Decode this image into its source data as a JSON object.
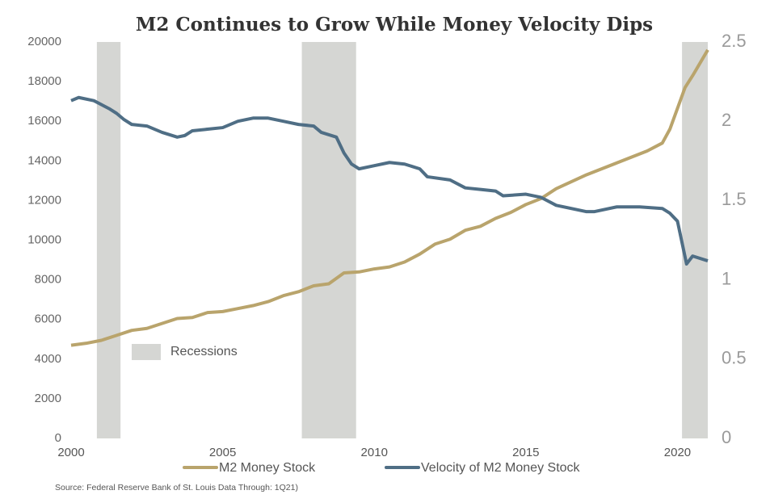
{
  "chart_data": {
    "type": "line",
    "title": "M2 Continues to Grow While Money Velocity Dips",
    "source": "Source: Federal Reserve Bank of St. Louis Data Through: 1Q21)",
    "xlim": [
      2000,
      2021
    ],
    "xticks": [
      2000,
      2005,
      2010,
      2015,
      2020
    ],
    "ylim": [
      0,
      20000
    ],
    "yticks": [
      0,
      2000,
      4000,
      6000,
      8000,
      10000,
      12000,
      14000,
      16000,
      18000,
      20000
    ],
    "y2lim": [
      0,
      2.5
    ],
    "y2ticks": [
      0,
      0.5,
      1,
      1.5,
      2,
      2.5
    ],
    "recessions": {
      "name": "Recessions",
      "color": "#d5d6d3",
      "ranges": [
        [
          2000.85,
          2001.63
        ],
        [
          2007.61,
          2009.4
        ],
        [
          2020.15,
          2021
        ]
      ]
    },
    "series": [
      {
        "name": "M2 Money Stock",
        "color": "#b9a46c",
        "x": [
          2000,
          2000.5,
          2001,
          2001.5,
          2002,
          2002.5,
          2003,
          2003.5,
          2004,
          2004.5,
          2005,
          2005.5,
          2006,
          2006.5,
          2007,
          2007.5,
          2008,
          2008.5,
          2009,
          2009.5,
          2010,
          2010.5,
          2011,
          2011.5,
          2012,
          2012.5,
          2013,
          2013.5,
          2014,
          2014.5,
          2015,
          2015.5,
          2016,
          2016.5,
          2017,
          2017.5,
          2018,
          2018.5,
          2019,
          2019.5,
          2019.75,
          2020.25,
          2020.5,
          2021
        ],
        "values": [
          4700,
          4800,
          4950,
          5200,
          5450,
          5550,
          5800,
          6050,
          6100,
          6350,
          6400,
          6550,
          6700,
          6900,
          7200,
          7400,
          7700,
          7800,
          8350,
          8400,
          8550,
          8650,
          8900,
          9300,
          9800,
          10050,
          10500,
          10700,
          11100,
          11400,
          11800,
          12100,
          12600,
          12950,
          13300,
          13600,
          13900,
          14200,
          14500,
          14900,
          15600,
          17700,
          18300,
          19600
        ]
      },
      {
        "name": "Velocity of M2 Money Stock",
        "color": "#4f6e85",
        "axis": "y2",
        "x": [
          2000,
          2000.25,
          2000.75,
          2001.25,
          2001.5,
          2001.75,
          2002,
          2002.5,
          2003,
          2003.5,
          2003.75,
          2004,
          2004.5,
          2005,
          2005.5,
          2006,
          2006.5,
          2007,
          2007.5,
          2008,
          2008.25,
          2008.75,
          2009,
          2009.25,
          2009.5,
          2010,
          2010.5,
          2011,
          2011.5,
          2011.75,
          2012.5,
          2013,
          2013.5,
          2014,
          2014.25,
          2015,
          2015.5,
          2016,
          2017,
          2017.25,
          2018,
          2018.75,
          2019.5,
          2019.75,
          2020,
          2020.3,
          2020.5,
          2021
        ],
        "values": [
          2.13,
          2.15,
          2.13,
          2.08,
          2.05,
          2.01,
          1.98,
          1.97,
          1.93,
          1.9,
          1.91,
          1.94,
          1.95,
          1.96,
          2.0,
          2.02,
          2.02,
          2.0,
          1.98,
          1.97,
          1.93,
          1.9,
          1.8,
          1.73,
          1.7,
          1.72,
          1.74,
          1.73,
          1.7,
          1.65,
          1.63,
          1.58,
          1.57,
          1.56,
          1.53,
          1.54,
          1.52,
          1.47,
          1.43,
          1.43,
          1.46,
          1.46,
          1.45,
          1.42,
          1.37,
          1.1,
          1.15,
          1.12
        ]
      }
    ]
  }
}
